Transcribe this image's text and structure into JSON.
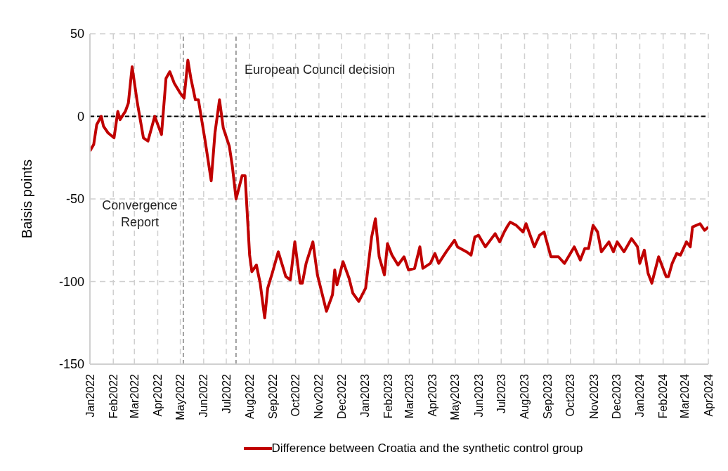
{
  "chart_data": {
    "type": "line",
    "ylabel": "Baisis points",
    "xlim": [
      "2022-01-01",
      "2024-04-01"
    ],
    "ylim": [
      -150,
      50
    ],
    "yticks": [
      -150,
      -100,
      -50,
      0,
      50
    ],
    "xticks": [
      {
        "value": "2022-01",
        "label": "Jan2022"
      },
      {
        "value": "2022-02",
        "label": "Feb2022"
      },
      {
        "value": "2022-03",
        "label": "Mar2022"
      },
      {
        "value": "2022-04",
        "label": "Apr2022"
      },
      {
        "value": "2022-05",
        "label": "May2022"
      },
      {
        "value": "2022-06",
        "label": "Jun2022"
      },
      {
        "value": "2022-07",
        "label": "Jul2022"
      },
      {
        "value": "2022-08",
        "label": "Aug2022"
      },
      {
        "value": "2022-09",
        "label": "Sep2022"
      },
      {
        "value": "2022-10",
        "label": "Oct2022"
      },
      {
        "value": "2022-11",
        "label": "Nov2022"
      },
      {
        "value": "2022-12",
        "label": "Dec2022"
      },
      {
        "value": "2023-01",
        "label": "Jan2023"
      },
      {
        "value": "2023-02",
        "label": "Feb2023"
      },
      {
        "value": "2023-03",
        "label": "Mar2023"
      },
      {
        "value": "2023-04",
        "label": "Apr2023"
      },
      {
        "value": "2023-05",
        "label": "May2023"
      },
      {
        "value": "2023-06",
        "label": "Jun2023"
      },
      {
        "value": "2023-07",
        "label": "Jul2023"
      },
      {
        "value": "2023-08",
        "label": "Aug2023"
      },
      {
        "value": "2023-09",
        "label": "Sep2023"
      },
      {
        "value": "2023-10",
        "label": "Oct2023"
      },
      {
        "value": "2023-11",
        "label": "Nov2023"
      },
      {
        "value": "2023-12",
        "label": "Dec2023"
      },
      {
        "value": "2024-01",
        "label": "Jan2024"
      },
      {
        "value": "2024-02",
        "label": "Feb2024"
      },
      {
        "value": "2024-03",
        "label": "Mar2024"
      },
      {
        "value": "2024-04",
        "label": "Apr2024"
      }
    ],
    "grid": true,
    "legend": "bottom",
    "marker": "none",
    "line_style": "solid",
    "ref_lines": [
      {
        "axis": "y",
        "value": 0,
        "color": "#000000",
        "line_style": "dashed"
      },
      {
        "axis": "x",
        "value": "2022-05-05",
        "label": "Convergence Report",
        "color": "#404040",
        "line_style": "dashed"
      },
      {
        "axis": "x",
        "value": "2022-07-14",
        "label": "European Council decision",
        "color": "#404040",
        "line_style": "dashed"
      }
    ],
    "series": [
      {
        "name": "Difference between Croatia and the synthetic control group",
        "color": "#c00000",
        "x": [
          "2022-01-01",
          "2022-01-06",
          "2022-01-10",
          "2022-01-16",
          "2022-01-19",
          "2022-01-25",
          "2022-02-02",
          "2022-02-07",
          "2022-02-10",
          "2022-02-17",
          "2022-02-21",
          "2022-02-26",
          "2022-03-05",
          "2022-03-13",
          "2022-03-19",
          "2022-03-28",
          "2022-04-06",
          "2022-04-12",
          "2022-04-17",
          "2022-04-23",
          "2022-05-01",
          "2022-05-06",
          "2022-05-11",
          "2022-05-15",
          "2022-05-21",
          "2022-05-25",
          "2022-06-03",
          "2022-06-11",
          "2022-06-16",
          "2022-06-22",
          "2022-06-27",
          "2022-07-05",
          "2022-07-09",
          "2022-07-14",
          "2022-07-22",
          "2022-07-26",
          "2022-08-01",
          "2022-08-04",
          "2022-08-10",
          "2022-08-15",
          "2022-08-21",
          "2022-08-25",
          "2022-08-31",
          "2022-09-08",
          "2022-09-18",
          "2022-09-24",
          "2022-09-30",
          "2022-10-07",
          "2022-10-10",
          "2022-10-15",
          "2022-10-24",
          "2022-10-30",
          "2022-11-11",
          "2022-11-19",
          "2022-11-22",
          "2022-11-25",
          "2022-12-03",
          "2022-12-11",
          "2022-12-16",
          "2022-12-24",
          "2023-01-02",
          "2023-01-10",
          "2023-01-15",
          "2023-01-20",
          "2023-01-27",
          "2023-01-31",
          "2023-02-06",
          "2023-02-14",
          "2023-02-22",
          "2023-02-28",
          "2023-03-08",
          "2023-03-15",
          "2023-03-19",
          "2023-03-29",
          "2023-04-04",
          "2023-04-09",
          "2023-04-19",
          "2023-04-30",
          "2023-05-04",
          "2023-05-16",
          "2023-05-22",
          "2023-05-27",
          "2023-06-01",
          "2023-06-10",
          "2023-06-23",
          "2023-06-29",
          "2023-07-05",
          "2023-07-10",
          "2023-07-13",
          "2023-07-21",
          "2023-07-30",
          "2023-08-03",
          "2023-08-14",
          "2023-08-21",
          "2023-08-27",
          "2023-09-05",
          "2023-09-15",
          "2023-09-23",
          "2023-10-06",
          "2023-10-14",
          "2023-10-20",
          "2023-10-25",
          "2023-10-31",
          "2023-11-06",
          "2023-11-11",
          "2023-11-21",
          "2023-11-27",
          "2023-12-02",
          "2023-12-11",
          "2023-12-21",
          "2023-12-29",
          "2024-01-01",
          "2024-01-07",
          "2024-01-12",
          "2024-01-17",
          "2024-01-26",
          "2024-02-05",
          "2024-02-08",
          "2024-02-13",
          "2024-02-19",
          "2024-02-24",
          "2024-03-03",
          "2024-03-08",
          "2024-03-11",
          "2024-03-21",
          "2024-03-27",
          "2024-04-01"
        ],
        "values": [
          -21,
          -17,
          -5,
          0,
          -6,
          -10,
          -13,
          3,
          -2,
          3,
          8,
          30,
          8,
          -13,
          -15,
          0,
          -11,
          23,
          27,
          20,
          14,
          11,
          34,
          23,
          10,
          10,
          -15,
          -39,
          -10,
          10,
          -7,
          -18,
          -30,
          -50,
          -36,
          -36,
          -84,
          -94,
          -90,
          -101,
          -122,
          -104,
          -95,
          -82,
          -97,
          -99,
          -76,
          -101,
          -101,
          -89,
          -76,
          -96,
          -118,
          -108,
          -93,
          -102,
          -88,
          -98,
          -107,
          -112,
          -104,
          -73,
          -62,
          -85,
          -96,
          -77,
          -84,
          -90,
          -85,
          -93,
          -92,
          -79,
          -92,
          -89,
          -83,
          -89,
          -82,
          -75,
          -79,
          -82,
          -84,
          -73,
          -72,
          -79,
          -71,
          -76,
          -70,
          -66,
          -64,
          -66,
          -70,
          -65,
          -79,
          -72,
          -70,
          -85,
          -85,
          -89,
          -79,
          -87,
          -80,
          -80,
          -66,
          -70,
          -82,
          -76,
          -82,
          -76,
          -82,
          -74,
          -79,
          -89,
          -81,
          -95,
          -101,
          -85,
          -97,
          -97,
          -89,
          -83,
          -84,
          -76,
          -79,
          -67,
          -65,
          -69,
          -67
        ]
      }
    ]
  }
}
